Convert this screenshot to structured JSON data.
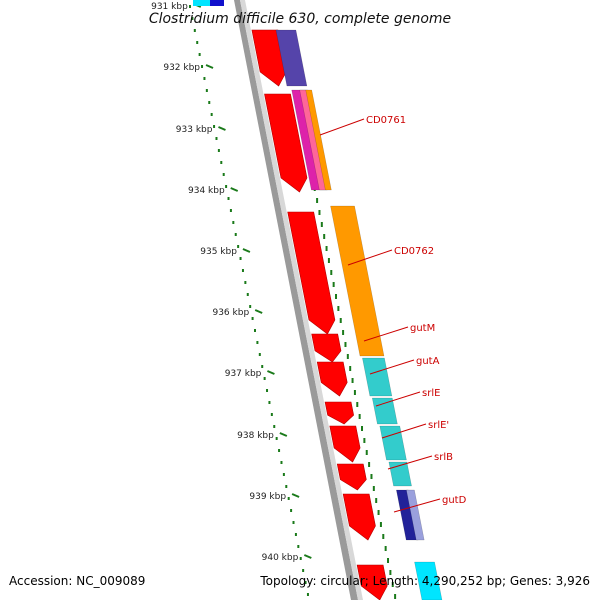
{
  "title": "Clostridium difficile 630, complete genome",
  "scale_labels": [
    "931 kbp",
    "932 kbp",
    "933 kbp",
    "934 kbp",
    "935 kbp",
    "936 kbp",
    "937 kbp",
    "938 kbp",
    "939 kbp",
    "940 kbp"
  ],
  "gene_labels": [
    "CD0761",
    "CD0762",
    "gutM",
    "gutA",
    "srlE",
    "srlE'",
    "srlB",
    "gutD"
  ],
  "footer": {
    "accession": "Accession: NC_009089",
    "summary": "Topology: circular; Length: 4,290,252 bp; Genes: 3,926"
  },
  "colors": {
    "cds": "#ff0000",
    "label": "#cc0000",
    "scale_ticks": "#1a7a1a",
    "orange": "#ff9900",
    "cyan": "#33cccc",
    "purple": "#5544aa",
    "navy": "#222299",
    "magenta": "#dd22aa",
    "backbone": "#808080"
  }
}
